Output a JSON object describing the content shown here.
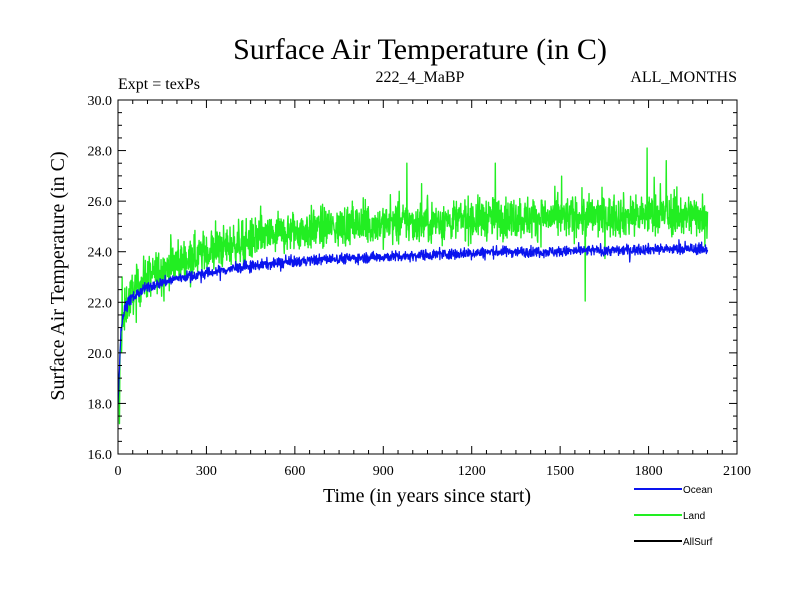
{
  "chart_data": {
    "type": "line",
    "title": "Surface Air Temperature (in C)",
    "subtitle_left": "Expt = texPs",
    "subtitle_center": "222_4_MaBP",
    "subtitle_right": "ALL_MONTHS",
    "xlabel": "Time (in years since start)",
    "ylabel": "Surface Air Temperature (in C)",
    "xlim": [
      0,
      2100
    ],
    "ylim": [
      16.0,
      30.0
    ],
    "xticks": [
      0,
      300,
      600,
      900,
      1200,
      1500,
      1800,
      2100
    ],
    "xtick_labels": [
      "0",
      "300",
      "600",
      "900",
      "1200",
      "1500",
      "1800",
      "2100"
    ],
    "yticks": [
      16,
      18,
      20,
      22,
      24,
      26,
      28,
      30
    ],
    "ytick_labels": [
      "16.0",
      "18.0",
      "20.0",
      "22.0",
      "24.0",
      "26.0",
      "28.0",
      "30.0"
    ],
    "legend_position": "bottom-right",
    "series": [
      {
        "name": "Land",
        "color": "#22ee22",
        "x_end": 2000,
        "mean_points": [
          [
            0,
            17.6
          ],
          [
            10,
            20.5
          ],
          [
            25,
            21.8
          ],
          [
            50,
            22.4
          ],
          [
            100,
            23.0
          ],
          [
            200,
            23.6
          ],
          [
            300,
            24.0
          ],
          [
            400,
            24.3
          ],
          [
            500,
            24.6
          ],
          [
            600,
            24.8
          ],
          [
            700,
            24.95
          ],
          [
            800,
            25.05
          ],
          [
            900,
            25.1
          ],
          [
            1000,
            25.15
          ],
          [
            1100,
            25.2
          ],
          [
            1200,
            25.3
          ],
          [
            1300,
            25.35
          ],
          [
            1400,
            25.35
          ],
          [
            1500,
            25.35
          ],
          [
            1600,
            25.4
          ],
          [
            1700,
            25.4
          ],
          [
            1800,
            25.45
          ],
          [
            1900,
            25.45
          ],
          [
            2000,
            25.45
          ]
        ],
        "spread": 1.4
      },
      {
        "name": "Ocean",
        "color": "#0a14ee",
        "x_end": 2000,
        "mean_points": [
          [
            0,
            18.0
          ],
          [
            10,
            20.9
          ],
          [
            25,
            21.9
          ],
          [
            50,
            22.2
          ],
          [
            100,
            22.6
          ],
          [
            200,
            22.95
          ],
          [
            300,
            23.15
          ],
          [
            400,
            23.35
          ],
          [
            500,
            23.5
          ],
          [
            600,
            23.6
          ],
          [
            700,
            23.7
          ],
          [
            800,
            23.75
          ],
          [
            900,
            23.8
          ],
          [
            1000,
            23.85
          ],
          [
            1100,
            23.9
          ],
          [
            1200,
            23.95
          ],
          [
            1300,
            24.0
          ],
          [
            1400,
            24.0
          ],
          [
            1500,
            24.0
          ],
          [
            1600,
            24.05
          ],
          [
            1700,
            24.05
          ],
          [
            1800,
            24.1
          ],
          [
            1900,
            24.1
          ],
          [
            2000,
            24.1
          ]
        ],
        "spread": 0.35
      },
      {
        "name": "AllSurf",
        "color": "#000000",
        "x_end": 2000,
        "mean_points": [],
        "spread": 0
      }
    ],
    "land_extremes": [
      [
        5,
        17.2
      ],
      [
        14,
        23.0
      ],
      [
        980,
        27.5
      ],
      [
        1280,
        27.5
      ],
      [
        1585,
        22.05
      ],
      [
        1795,
        28.1
      ],
      [
        1860,
        27.6
      ]
    ]
  }
}
